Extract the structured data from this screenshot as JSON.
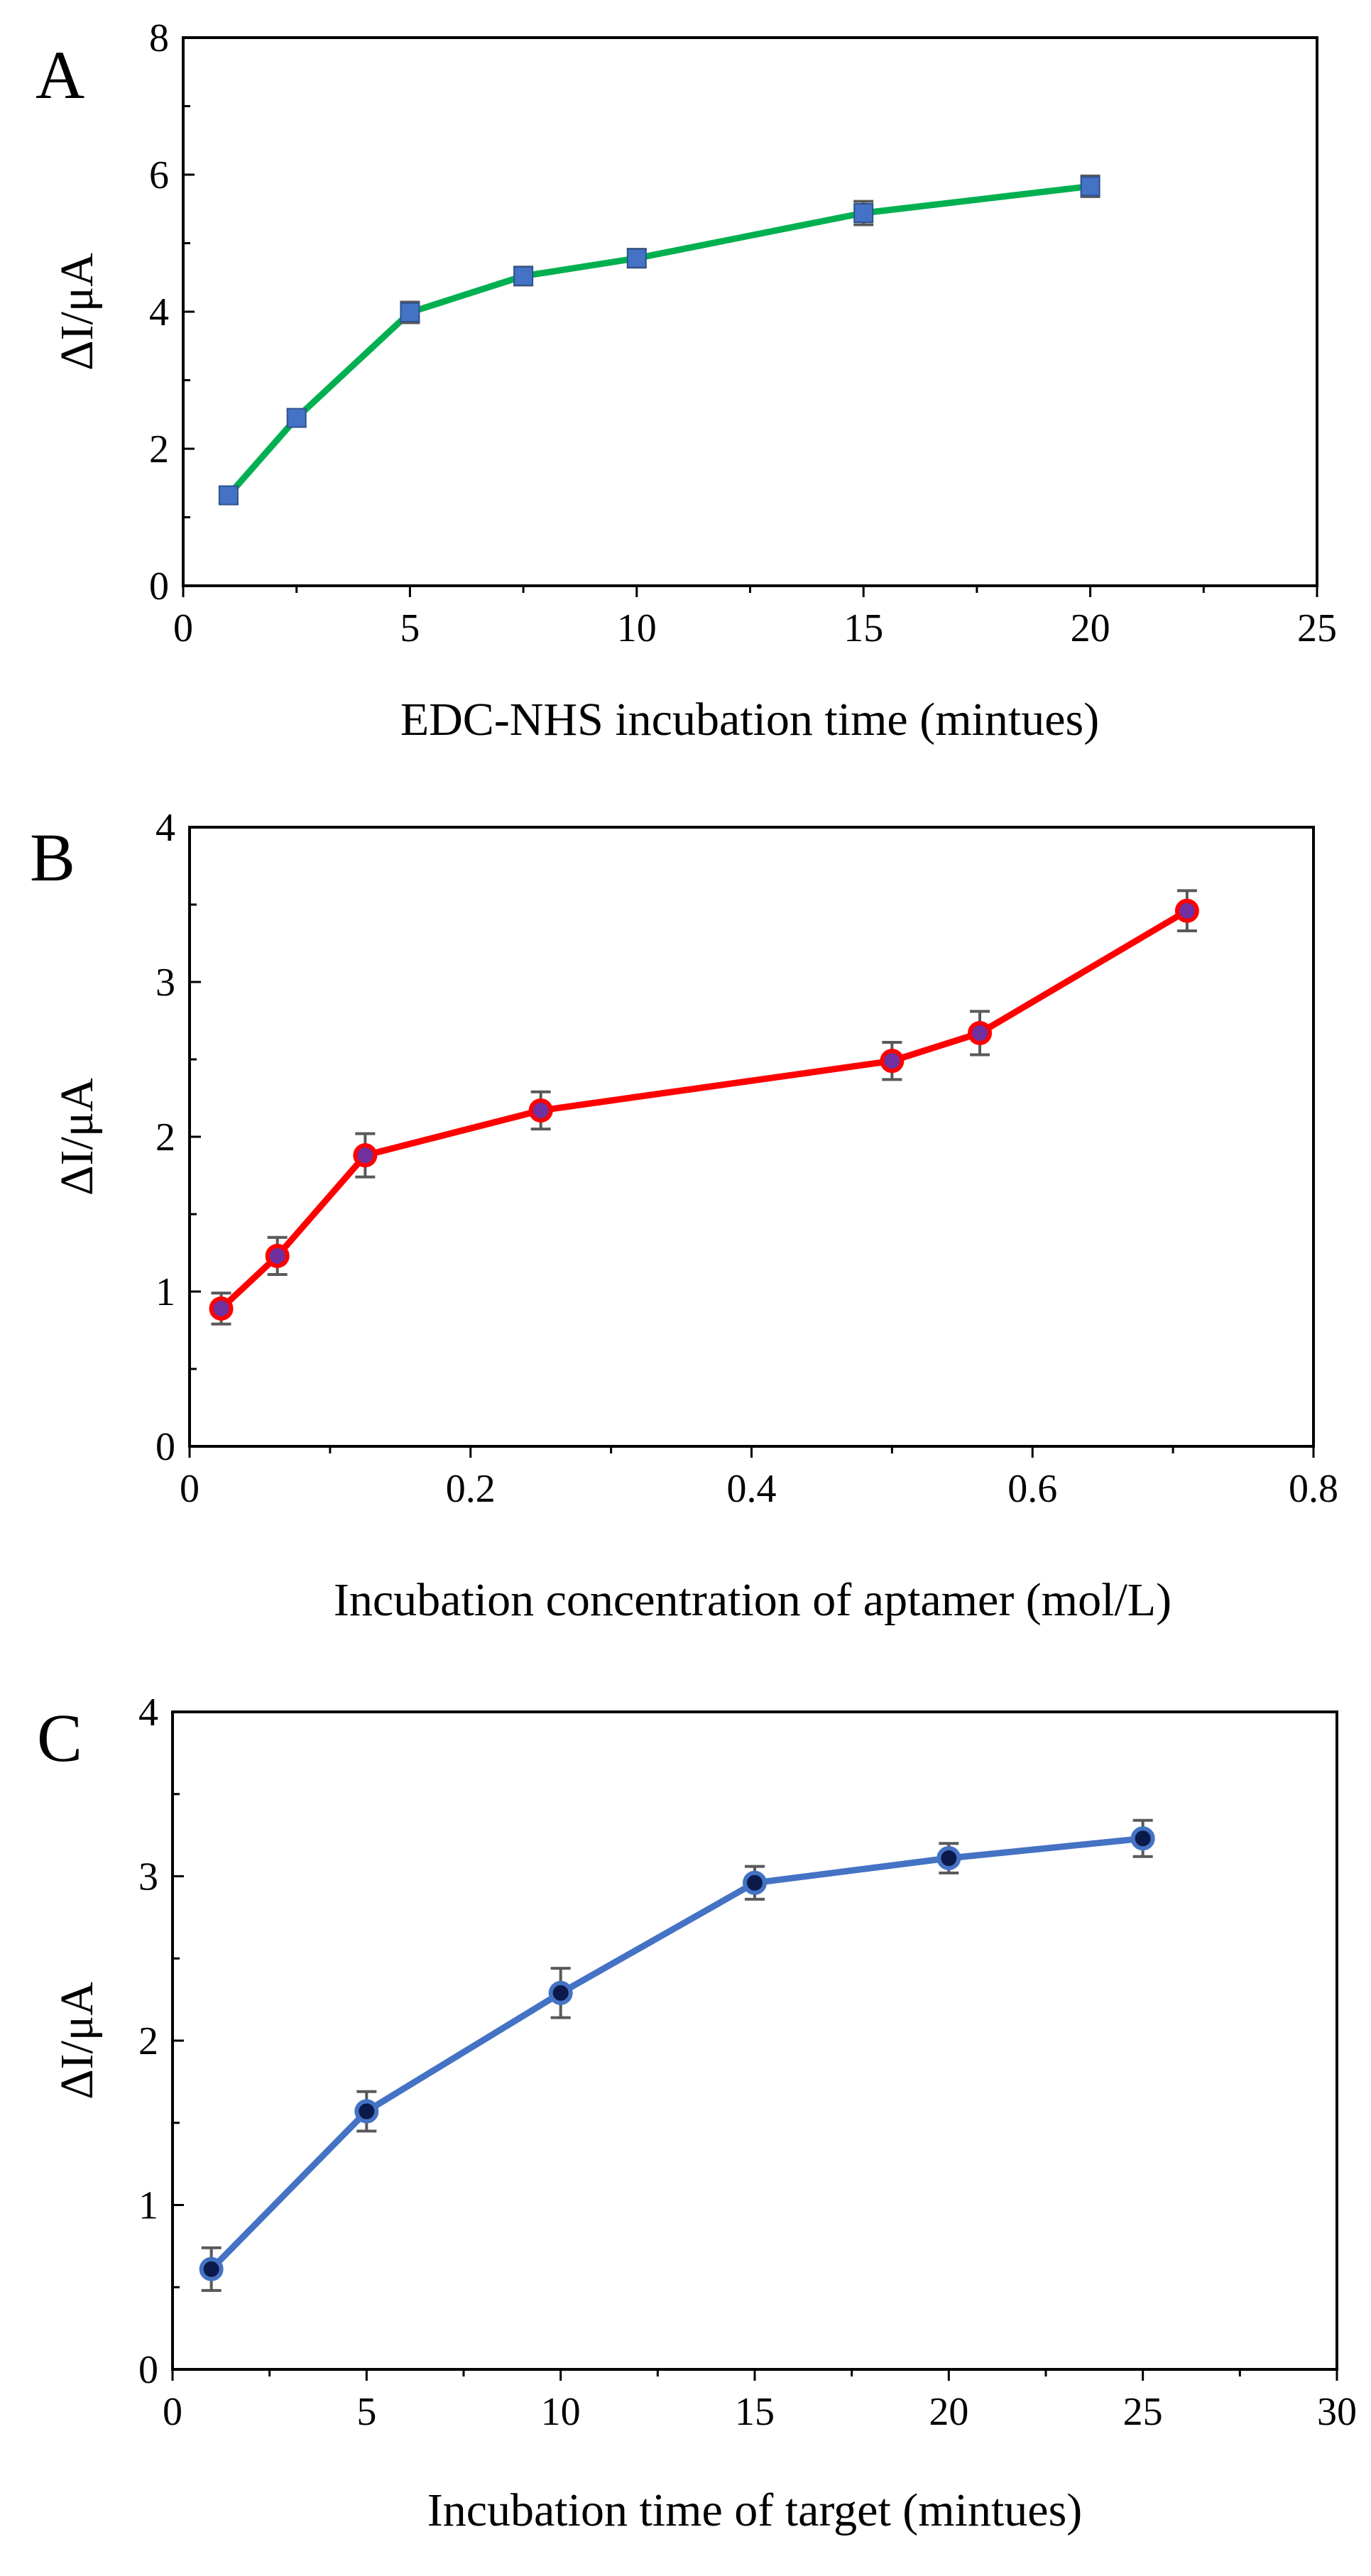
{
  "chart_data": [
    {
      "type": "line",
      "panel_label": "A",
      "xlabel": "EDC-NHS incubation time (mintues)",
      "ylabel": "ΔI/μA",
      "xlim": [
        0,
        25
      ],
      "ylim": [
        0,
        8
      ],
      "xticks": [
        0,
        5,
        10,
        15,
        20,
        25
      ],
      "xtick_labels": [
        "0",
        "5",
        "10",
        "15",
        "20",
        "25"
      ],
      "yticks": [
        0,
        2,
        4,
        6,
        8
      ],
      "ytick_labels": [
        "0",
        "2",
        "4",
        "6",
        "8"
      ],
      "grid": false,
      "line_color": "#00b050",
      "marker": "square",
      "marker_color": "#4472c4",
      "series": [
        {
          "x": [
            1,
            2.5,
            5,
            7.5,
            10,
            15,
            20
          ],
          "y": [
            1.32,
            2.45,
            3.99,
            4.52,
            4.78,
            5.44,
            5.83
          ],
          "error": [
            0.12,
            0.12,
            0.15,
            0.13,
            0.13,
            0.17,
            0.15
          ]
        }
      ]
    },
    {
      "type": "line",
      "panel_label": "B",
      "xlabel": "Incubation concentration of aptamer (mol/L)",
      "ylabel": "ΔI/μA",
      "xlim": [
        0,
        0.8
      ],
      "ylim": [
        0,
        4
      ],
      "xticks": [
        0,
        0.2,
        0.4,
        0.6,
        0.8
      ],
      "xtick_labels": [
        "0",
        "0.2",
        "0.4",
        "0.6",
        "0.8"
      ],
      "yticks": [
        0,
        1,
        2,
        3,
        4
      ],
      "ytick_labels": [
        "0",
        "1",
        "2",
        "3",
        "4"
      ],
      "grid": false,
      "line_color": "#ff0000",
      "marker": "circle",
      "marker_color": "#7030a0",
      "series": [
        {
          "x": [
            0.0225,
            0.0625,
            0.125,
            0.25,
            0.5,
            0.5625,
            0.71
          ],
          "y": [
            0.89,
            1.23,
            1.88,
            2.17,
            2.49,
            2.67,
            3.46
          ],
          "error": [
            0.1,
            0.12,
            0.14,
            0.12,
            0.12,
            0.14,
            0.13
          ]
        }
      ]
    },
    {
      "type": "line",
      "panel_label": "C",
      "xlabel": "Incubation time of target (mintues)",
      "ylabel": "ΔI/μA",
      "xlim": [
        0,
        30
      ],
      "ylim": [
        0,
        4
      ],
      "xticks": [
        0,
        5,
        10,
        15,
        20,
        25,
        30
      ],
      "xtick_labels": [
        "0",
        "5",
        "10",
        "15",
        "20",
        "25",
        "30"
      ],
      "yticks": [
        0,
        1,
        2,
        3,
        4
      ],
      "ytick_labels": [
        "0",
        "1",
        "2",
        "3",
        "4"
      ],
      "grid": false,
      "line_color": "#4472c4",
      "marker": "circle",
      "marker_color": "#0b1a4a",
      "series": [
        {
          "x": [
            1,
            5,
            10,
            15,
            20,
            25
          ],
          "y": [
            0.61,
            1.57,
            2.29,
            2.96,
            3.11,
            3.23
          ],
          "error": [
            0.13,
            0.12,
            0.15,
            0.1,
            0.09,
            0.11
          ]
        }
      ]
    }
  ]
}
